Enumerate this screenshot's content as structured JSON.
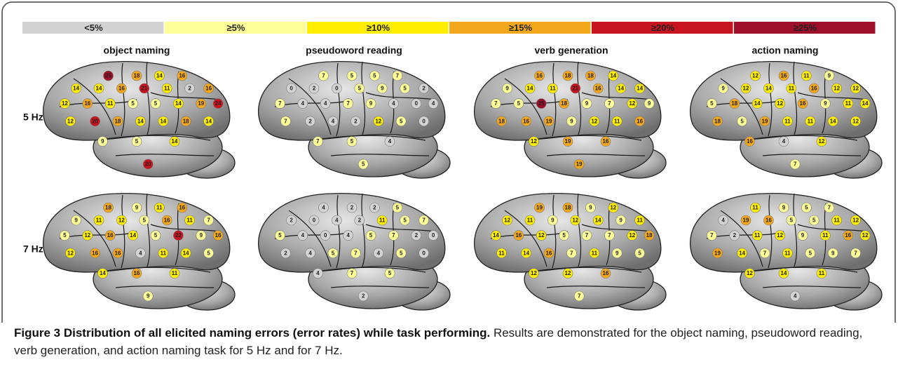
{
  "legend": {
    "bins": [
      {
        "label": "<5%",
        "color": "#d3d3d3"
      },
      {
        "label": "≥5%",
        "min": 5,
        "color": "#ffff99"
      },
      {
        "label": "≥10%",
        "min": 10,
        "color": "#ffee00"
      },
      {
        "label": "≥15%",
        "min": 15,
        "color": "#f3a81c"
      },
      {
        "label": "≥20%",
        "min": 20,
        "color": "#c8141e"
      },
      {
        "label": "≥25%",
        "min": 25,
        "color": "#9e0f2a"
      }
    ]
  },
  "tasks": [
    "object naming",
    "pseudoword reading",
    "verb generation",
    "action naming"
  ],
  "rows": [
    {
      "label": "5 Hz",
      "panels": [
        [
          25,
          18,
          14,
          16,
          14,
          14,
          16,
          21,
          11,
          2,
          16,
          12,
          16,
          11,
          5,
          5,
          14,
          19,
          24,
          12,
          20,
          18,
          14,
          14,
          18,
          14,
          9,
          5,
          14,
          20
        ],
        [
          7,
          5,
          5,
          7,
          0,
          2,
          0,
          5,
          9,
          5,
          2,
          7,
          4,
          4,
          7,
          9,
          4,
          0,
          4,
          7,
          2,
          4,
          2,
          12,
          5,
          0,
          7,
          5,
          4,
          5
        ],
        [
          16,
          18,
          18,
          14,
          9,
          14,
          11,
          21,
          16,
          14,
          14,
          7,
          5,
          25,
          18,
          9,
          7,
          12,
          9,
          18,
          16,
          19,
          9,
          12,
          11,
          16,
          12,
          19,
          16,
          19
        ],
        [
          12,
          16,
          11,
          9,
          9,
          12,
          14,
          11,
          16,
          12,
          12,
          5,
          18,
          14,
          12,
          16,
          9,
          11,
          14,
          18,
          5,
          19,
          11,
          11,
          14,
          12,
          16,
          4,
          12,
          7
        ]
      ]
    },
    {
      "label": "7 Hz",
      "panels": [
        [
          18,
          9,
          11,
          16,
          9,
          11,
          12,
          5,
          16,
          11,
          7,
          5,
          12,
          16,
          14,
          5,
          22,
          9,
          16,
          12,
          16,
          16,
          4,
          11,
          14,
          5,
          14,
          16,
          11,
          9
        ],
        [
          4,
          2,
          2,
          5,
          2,
          0,
          4,
          2,
          11,
          5,
          7,
          5,
          4,
          0,
          4,
          5,
          7,
          2,
          0,
          2,
          4,
          5,
          7,
          4,
          5,
          0,
          4,
          7,
          5,
          2
        ],
        [
          19,
          18,
          9,
          12,
          12,
          11,
          9,
          12,
          14,
          9,
          11,
          14,
          16,
          12,
          5,
          7,
          7,
          12,
          18,
          11,
          14,
          16,
          7,
          11,
          9,
          5,
          12,
          12,
          16,
          7
        ],
        [
          11,
          9,
          5,
          7,
          4,
          19,
          16,
          5,
          5,
          11,
          12,
          7,
          2,
          11,
          12,
          9,
          11,
          16,
          12,
          19,
          14,
          7,
          11,
          5,
          9,
          7,
          12,
          14,
          11,
          4
        ]
      ]
    }
  ],
  "caption": {
    "title": "Figure 3 Distribution of all elicited naming errors (error rates) while task performing.",
    "text": "Results are demonstrated for the object naming, pseudoword reading, verb generation, and action naming task for 5 Hz and for 7 Hz."
  }
}
